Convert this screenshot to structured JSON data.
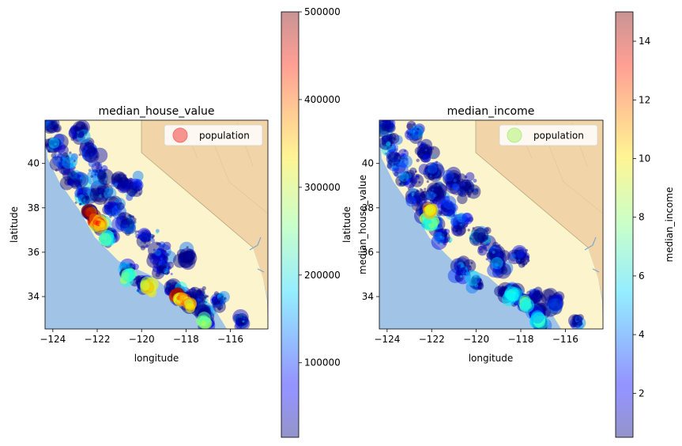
{
  "chart_data": [
    {
      "type": "scatter",
      "title": "median_house_value",
      "xlabel": "longitude",
      "ylabel": "latitude",
      "xlim": [
        -124.35,
        -114.31
      ],
      "ylim": [
        32.54,
        41.95
      ],
      "xticks": [
        -124,
        -122,
        -120,
        -118,
        -116
      ],
      "yticks": [
        34,
        36,
        38,
        40
      ],
      "tick_labels_x": [
        "−124",
        "−122",
        "−120",
        "−118",
        "−116"
      ],
      "tick_labels_y": [
        "34",
        "36",
        "38",
        "40"
      ],
      "legend": {
        "label": "population",
        "placement": "top-right",
        "marker_color": "#f4726d"
      },
      "colorbar": {
        "label": "",
        "range": [
          14999,
          500001
        ],
        "ticks": [
          100000,
          200000,
          300000,
          400000,
          500000
        ],
        "tick_labels": [
          "100000",
          "200000",
          "300000",
          "400000",
          "500000"
        ],
        "cmap": "jet",
        "alpha": 0.4
      },
      "hotspots": [
        {
          "lon": -122.3,
          "lat": 37.75,
          "value": 480000
        },
        {
          "lon": -122.1,
          "lat": 37.45,
          "value": 450000
        },
        {
          "lon": -121.9,
          "lat": 37.3,
          "value": 400000
        },
        {
          "lon": -118.4,
          "lat": 34.05,
          "value": 470000
        },
        {
          "lon": -118.2,
          "lat": 33.85,
          "value": 380000
        },
        {
          "lon": -117.8,
          "lat": 33.65,
          "value": 350000
        },
        {
          "lon": -120.6,
          "lat": 34.9,
          "value": 260000
        },
        {
          "lon": -117.2,
          "lat": 32.9,
          "value": 280000
        },
        {
          "lon": -121.6,
          "lat": 36.6,
          "value": 230000
        },
        {
          "lon": -119.7,
          "lat": 34.4,
          "value": 320000
        }
      ]
    },
    {
      "type": "scatter",
      "title": "median_income",
      "xlabel": "longitude",
      "ylabel": "latitude",
      "ylabel_overlap": "median_house_value",
      "xlim": [
        -124.35,
        -114.31
      ],
      "ylim": [
        32.54,
        41.95
      ],
      "xticks": [
        -124,
        -122,
        -120,
        -118,
        -116
      ],
      "yticks": [
        34,
        36,
        38,
        40
      ],
      "tick_labels_x": [
        "−124",
        "−122",
        "−120",
        "−118",
        "−116"
      ],
      "tick_labels_y": [
        "34",
        "36",
        "38",
        "40"
      ],
      "legend": {
        "label": "population",
        "placement": "top-right",
        "marker_color": "#c8f49a"
      },
      "colorbar": {
        "label": "median_income",
        "range": [
          0.4999,
          15.0001
        ],
        "ticks": [
          2,
          4,
          6,
          8,
          10,
          12,
          14
        ],
        "tick_labels": [
          "2",
          "4",
          "6",
          "8",
          "10",
          "12",
          "14"
        ],
        "cmap": "jet",
        "alpha": 0.4
      },
      "hotspots": [
        {
          "lon": -122.2,
          "lat": 37.5,
          "value": 8.5
        },
        {
          "lon": -122.0,
          "lat": 37.3,
          "value": 7.5
        },
        {
          "lon": -118.4,
          "lat": 34.05,
          "value": 6.5
        },
        {
          "lon": -117.8,
          "lat": 33.65,
          "value": 7.0
        },
        {
          "lon": -117.2,
          "lat": 32.95,
          "value": 6.0
        },
        {
          "lon": -122.1,
          "lat": 37.9,
          "value": 10.0
        }
      ]
    }
  ]
}
